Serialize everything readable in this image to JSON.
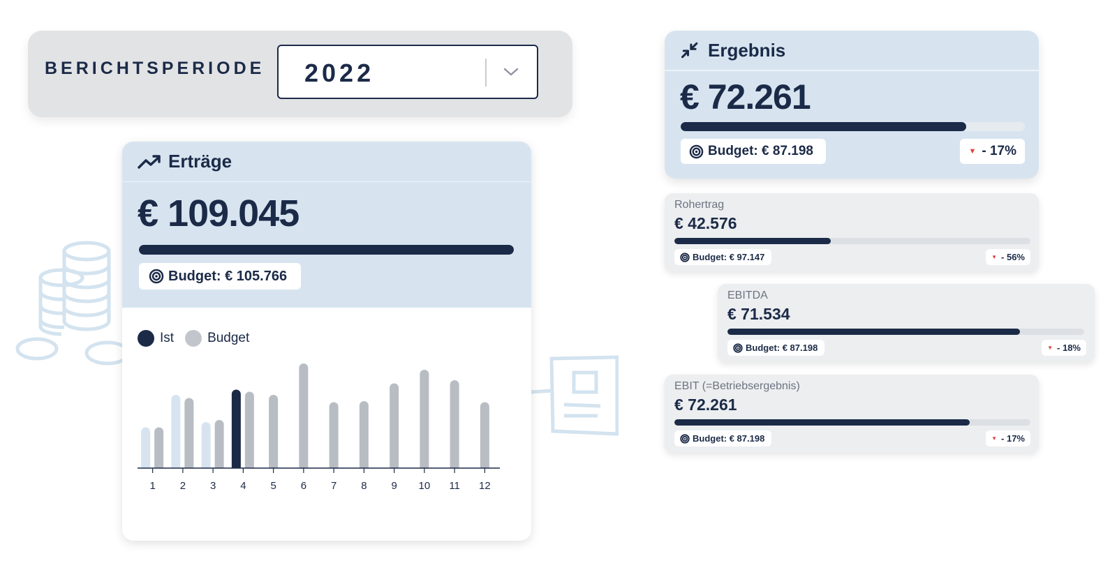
{
  "period": {
    "label": "BERICHTSPERIODE",
    "selected": "2022"
  },
  "ertraege": {
    "title": "Erträge",
    "value": "€ 109.045",
    "progress": 1.0,
    "budget": "Budget: € 105.766",
    "legend": {
      "actual": "Ist",
      "budget": "Budget"
    }
  },
  "ergebnis": {
    "title": "Ergebnis",
    "value": "€ 72.261",
    "progress": 0.83,
    "budget": "Budget: € 87.198",
    "delta": "- 17%"
  },
  "kpis": [
    {
      "label": "Rohertrag",
      "value": "€ 42.576",
      "progress": 0.44,
      "budget": "Budget: € 97.147",
      "delta": "- 56%"
    },
    {
      "label": "EBITDA",
      "value": "€ 71.534",
      "progress": 0.82,
      "budget": "Budget: € 87.198",
      "delta": "- 18%"
    },
    {
      "label": "EBIT (=Betriebsergebnis)",
      "value": "€ 72.261",
      "progress": 0.83,
      "budget": "Budget: € 87.198",
      "delta": "- 17%"
    }
  ],
  "colors": {
    "navy": "#1b2a47",
    "card_blue": "#d7e4f0",
    "light_blue_bar": "#d7e4f0",
    "budget_grey": "#b8bdc4",
    "delta_red": "#e0413a"
  },
  "chart_data": {
    "type": "bar",
    "categories": [
      "1",
      "2",
      "3",
      "4",
      "5",
      "6",
      "7",
      "8",
      "9",
      "10",
      "11",
      "12"
    ],
    "series": [
      {
        "name": "Ist",
        "values": [
          39,
          70,
          44,
          75,
          null,
          null,
          null,
          null,
          null,
          null,
          null,
          null
        ]
      },
      {
        "name": "Budget",
        "values": [
          39,
          67,
          46,
          73,
          70,
          100,
          63,
          64,
          81,
          94,
          84,
          63
        ]
      }
    ],
    "current_month": "4",
    "ylim": [
      0,
      100
    ],
    "grid": false,
    "legend": "top-left"
  }
}
